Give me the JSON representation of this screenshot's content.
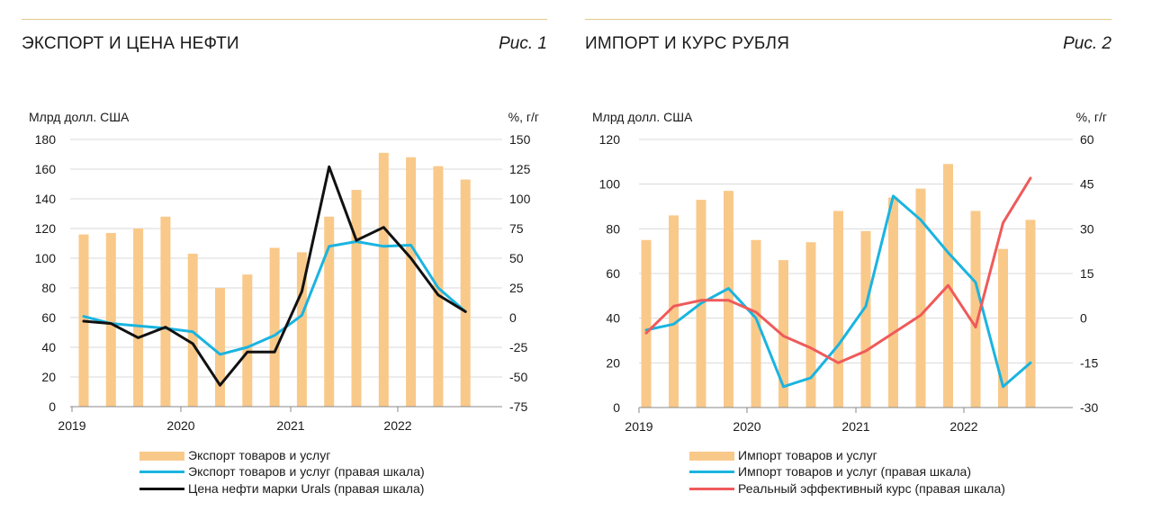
{
  "colors": {
    "bar": "#f9c98a",
    "line_blue": "#1ab4e0",
    "line_black": "#111111",
    "line_red": "#ef5a5a",
    "grid": "#d9d9d9",
    "rule": "#e3c98a"
  },
  "chart_data": [
    {
      "type": "bar+line",
      "title": "ЭКСПОРТ И ЦЕНА НЕФТИ",
      "figure_label": "Рис. 1",
      "left_axis_label": "Млрд долл. США",
      "right_axis_label": "%, г/г",
      "left_ylim": [
        0,
        180
      ],
      "left_ticks": [
        "0",
        "20",
        "40",
        "60",
        "80",
        "100",
        "120",
        "140",
        "160",
        "180"
      ],
      "right_ylim": [
        -75,
        150
      ],
      "right_ticks": [
        "-75",
        "-50",
        "-25",
        "0",
        "25",
        "50",
        "75",
        "100",
        "125",
        "150"
      ],
      "year_labels": [
        "2019",
        "2020",
        "2021",
        "2022"
      ],
      "bars": {
        "name": "Экспорт товаров и услуг",
        "values": [
          116,
          117,
          120,
          128,
          103,
          80,
          89,
          107,
          104,
          128,
          146,
          171,
          168,
          162,
          153
        ]
      },
      "lines": [
        {
          "name": "Экспорт товаров и услуг (правая шкала)",
          "color": "#1ab4e0",
          "values": [
            1,
            -5,
            -7,
            -9,
            -12,
            -31,
            -25,
            -15,
            2,
            60,
            64,
            60,
            61,
            25,
            5
          ]
        },
        {
          "name": "Цена нефти марки Urals (правая шкала)",
          "color": "#111111",
          "values": [
            -3,
            -5,
            -17,
            -8,
            -22,
            -57,
            -29,
            -29,
            22,
            127,
            65,
            76,
            50,
            19,
            5
          ]
        }
      ],
      "legend": [
        "Экспорт товаров и услуг",
        "Экспорт товаров и услуг (правая шкала)",
        "Цена нефти марки Urals (правая шкала)"
      ]
    },
    {
      "type": "bar+line",
      "title": "ИМПОРТ И КУРС РУБЛЯ",
      "figure_label": "Рис. 2",
      "left_axis_label": "Млрд долл. США",
      "right_axis_label": "%, г/г",
      "left_ylim": [
        0,
        120
      ],
      "left_ticks": [
        "0",
        "20",
        "40",
        "60",
        "80",
        "100",
        "120"
      ],
      "right_ylim": [
        -30,
        60
      ],
      "right_ticks": [
        "-30",
        "-15",
        "0",
        "15",
        "30",
        "45",
        "60"
      ],
      "year_labels": [
        "2019",
        "2020",
        "2021",
        "2022"
      ],
      "bars": {
        "name": "Импорт товаров и услуг",
        "values": [
          75,
          86,
          93,
          97,
          75,
          66,
          74,
          88,
          79,
          94,
          98,
          109,
          88,
          71,
          84
        ]
      },
      "lines": [
        {
          "name": "Импорт товаров и услуг (правая шкала)",
          "color": "#1ab4e0",
          "values": [
            -4,
            -2,
            5,
            10,
            0,
            -23,
            -20,
            -9,
            4,
            41,
            33,
            22,
            12,
            -23,
            -15
          ]
        },
        {
          "name": "Реальный эффективный курс (правая шкала)",
          "color": "#ef5a5a",
          "values": [
            -5,
            4,
            6,
            6,
            2,
            -6,
            -10,
            -15,
            -11,
            -5,
            1,
            11,
            -3,
            32,
            47
          ]
        }
      ],
      "legend": [
        "Импорт товаров и услуг",
        "Импорт товаров и услуг (правая шкала)",
        "Реальный эффективный курс (правая шкала)"
      ]
    }
  ]
}
